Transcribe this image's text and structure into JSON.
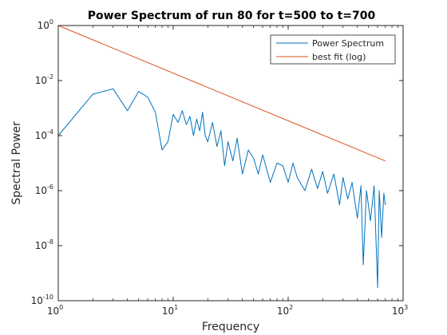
{
  "chart_data": {
    "type": "line",
    "title": "Power Spectrum of run 80 for t=500 to t=700",
    "xlabel": "Frequency",
    "ylabel": "Spectral Power",
    "xscale": "log",
    "yscale": "log",
    "xlim": [
      1,
      1000
    ],
    "ylim": [
      1e-10,
      1
    ],
    "grid": false,
    "legend_position": "top-right",
    "x_ticks": [
      {
        "value": 1,
        "mantissa": "10",
        "exponent": "0"
      },
      {
        "value": 10,
        "mantissa": "10",
        "exponent": "1"
      },
      {
        "value": 100,
        "mantissa": "10",
        "exponent": "2"
      },
      {
        "value": 1000,
        "mantissa": "10",
        "exponent": "3"
      }
    ],
    "y_ticks": [
      {
        "value": 1,
        "mantissa": "10",
        "exponent": "0"
      },
      {
        "value": 0.01,
        "mantissa": "10",
        "exponent": "-2"
      },
      {
        "value": 0.0001,
        "mantissa": "10",
        "exponent": "-4"
      },
      {
        "value": 1e-06,
        "mantissa": "10",
        "exponent": "-6"
      },
      {
        "value": 1e-08,
        "mantissa": "10",
        "exponent": "-8"
      },
      {
        "value": 1e-10,
        "mantissa": "10",
        "exponent": "-10"
      }
    ],
    "series": [
      {
        "name": "Power Spectrum",
        "color": "#0072BD",
        "points": [
          [
            1,
            0.0001
          ],
          [
            2,
            0.0032
          ],
          [
            3,
            0.005
          ],
          [
            4,
            0.0008
          ],
          [
            5,
            0.004
          ],
          [
            6,
            0.0025
          ],
          [
            7,
            0.0007
          ],
          [
            8,
            3e-05
          ],
          [
            9,
            6e-05
          ],
          [
            10,
            0.0006
          ],
          [
            11,
            0.0003
          ],
          [
            12,
            0.0008
          ],
          [
            13,
            0.00025
          ],
          [
            14,
            0.0005
          ],
          [
            15,
            0.0001
          ],
          [
            16,
            0.0004
          ],
          [
            17,
            0.00015
          ],
          [
            18,
            0.0007
          ],
          [
            19,
            0.0001
          ],
          [
            20,
            6e-05
          ],
          [
            22,
            0.0003
          ],
          [
            24,
            4e-05
          ],
          [
            26,
            0.00015
          ],
          [
            28,
            8e-06
          ],
          [
            30,
            6e-05
          ],
          [
            33,
            1.2e-05
          ],
          [
            36,
            8e-05
          ],
          [
            40,
            4e-06
          ],
          [
            45,
            3e-05
          ],
          [
            50,
            1.5e-05
          ],
          [
            55,
            4e-06
          ],
          [
            60,
            2e-05
          ],
          [
            70,
            2e-06
          ],
          [
            80,
            1e-05
          ],
          [
            90,
            8e-06
          ],
          [
            100,
            2e-06
          ],
          [
            110,
            1e-05
          ],
          [
            120,
            3e-06
          ],
          [
            140,
            1e-06
          ],
          [
            160,
            6e-06
          ],
          [
            180,
            1.2e-06
          ],
          [
            200,
            5e-06
          ],
          [
            220,
            8e-07
          ],
          [
            250,
            4e-06
          ],
          [
            280,
            3e-07
          ],
          [
            300,
            3e-06
          ],
          [
            330,
            5e-07
          ],
          [
            360,
            2e-06
          ],
          [
            400,
            1e-07
          ],
          [
            430,
            1.5e-06
          ],
          [
            450,
            2e-09
          ],
          [
            480,
            1e-06
          ],
          [
            520,
            8e-08
          ],
          [
            560,
            1.5e-06
          ],
          [
            600,
            3e-10
          ],
          [
            620,
            1e-06
          ],
          [
            650,
            2e-08
          ],
          [
            680,
            8e-07
          ],
          [
            700,
            3e-07
          ]
        ]
      },
      {
        "name": "best fit (log)",
        "color": "#D95319",
        "points": [
          [
            1,
            1
          ],
          [
            700,
            1.2e-05
          ]
        ]
      }
    ]
  }
}
